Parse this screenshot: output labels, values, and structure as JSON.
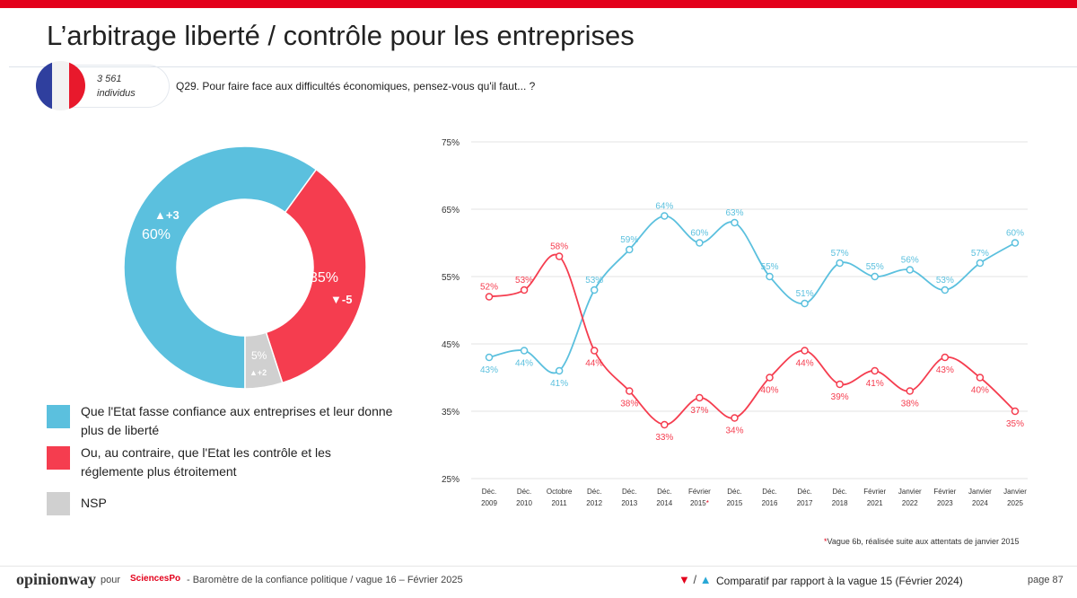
{
  "header": {
    "title": "L’arbitrage liberté / contrôle pour les entreprises",
    "sample_count": "3 561",
    "sample_unit": "individus",
    "question": "Q29. Pour faire face aux difficultés économiques, pensez-vous qu'il faut... ?"
  },
  "colors": {
    "blue": "#5bc0de",
    "red": "#f53d4f",
    "gray": "#d0d0d0",
    "brand_red": "#e3001b"
  },
  "chart_data": [
    {
      "type": "pie",
      "subtype": "donut",
      "slices": [
        {
          "label": "Que l'Etat fasse confiance aux entreprises et leur donne plus de liberté",
          "value": 60,
          "value_label": "60%",
          "change": "+3",
          "change_dir": "up",
          "color": "#5bc0de"
        },
        {
          "label": "Ou, au contraire, que l'Etat les contrôle et les réglemente plus étroitement",
          "value": 35,
          "value_label": "35%",
          "change": "-5",
          "change_dir": "down",
          "color": "#f53d4f"
        },
        {
          "label": "NSP",
          "value": 5,
          "value_label": "5%",
          "change": "+2",
          "change_dir": "up",
          "color": "#d0d0d0"
        }
      ]
    },
    {
      "type": "line",
      "ylim": [
        25,
        75
      ],
      "yticks": [
        "25%",
        "35%",
        "45%",
        "55%",
        "65%",
        "75%"
      ],
      "ytick_values": [
        25,
        35,
        45,
        55,
        65,
        75
      ],
      "categories": [
        [
          "Déc.",
          "2009"
        ],
        [
          "Déc.",
          "2010"
        ],
        [
          "Octobre",
          "2011"
        ],
        [
          "Déc.",
          "2012"
        ],
        [
          "Déc.",
          "2013"
        ],
        [
          "Déc.",
          "2014"
        ],
        [
          "Février",
          "2015*"
        ],
        [
          "Déc.",
          "2015"
        ],
        [
          "Déc.",
          "2016"
        ],
        [
          "Déc.",
          "2017"
        ],
        [
          "Déc.",
          "2018"
        ],
        [
          "Février",
          "2021"
        ],
        [
          "Janvier",
          "2022"
        ],
        [
          "Février",
          "2023"
        ],
        [
          "Janvier",
          "2024"
        ],
        [
          "Janvier",
          "2025"
        ]
      ],
      "grid": true,
      "series": [
        {
          "color": "#5bc0de",
          "values": [
            43,
            44,
            41,
            53,
            59,
            64,
            60,
            63,
            55,
            51,
            57,
            55,
            56,
            53,
            57,
            60
          ]
        },
        {
          "color": "#f53d4f",
          "values": [
            52,
            53,
            58,
            44,
            38,
            33,
            37,
            34,
            40,
            44,
            39,
            41,
            38,
            43,
            40,
            35
          ]
        }
      ],
      "note": "Vague 6b, réalisée suite aux attentats de janvier 2015"
    }
  ],
  "footer": {
    "logo": "opinionway",
    "pour": "pour",
    "partner_logo": "SciencesPo",
    "source": "- Baromètre de la confiance politique / vague 16 – Février 2025",
    "comparison": "Comparatif par rapport à la vague 15 (Février 2024)",
    "page": "page 87"
  }
}
